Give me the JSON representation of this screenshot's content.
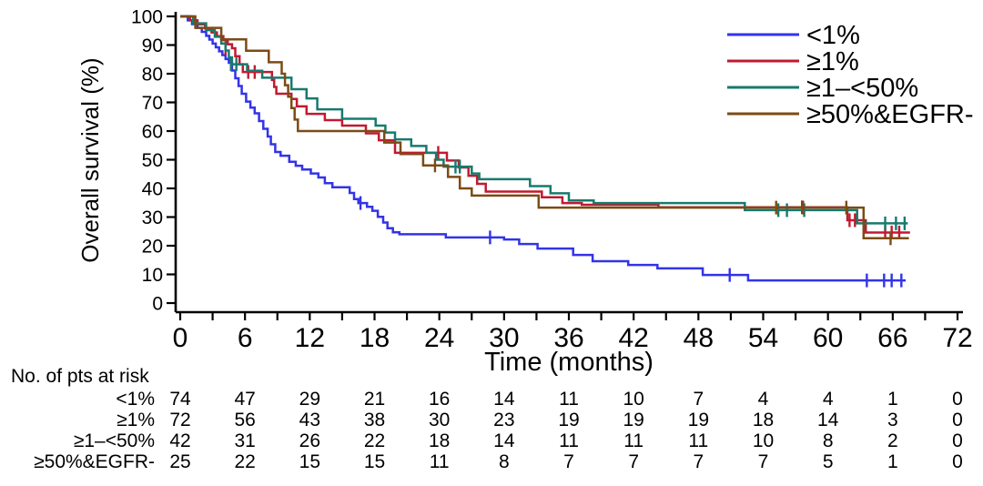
{
  "chart_data": {
    "type": "line",
    "chart_kind": "kaplan_meier_step",
    "title": "",
    "xlabel": "Time (months)",
    "ylabel": "Overall survival (%)",
    "xlim": [
      0,
      72
    ],
    "ylim": [
      0,
      100
    ],
    "x_major_ticks": [
      0,
      6,
      12,
      18,
      24,
      30,
      36,
      42,
      48,
      54,
      60,
      66,
      72
    ],
    "x_minor_tick_step": 3,
    "y_ticks": [
      0,
      10,
      20,
      30,
      40,
      50,
      60,
      70,
      80,
      90,
      100
    ],
    "grid": false,
    "legend_position": "top-right",
    "axis_color": "#000000",
    "background_color": "#ffffff",
    "series": [
      {
        "key": "lt1pct",
        "name": "<1%",
        "color": "#3333e8",
        "end_month": 67.2,
        "points": [
          [
            0,
            100
          ],
          [
            0.7,
            98.6
          ],
          [
            1.1,
            97.3
          ],
          [
            1.6,
            96
          ],
          [
            2,
            94.6
          ],
          [
            2.4,
            93.2
          ],
          [
            2.7,
            91.9
          ],
          [
            3,
            90.5
          ],
          [
            3.3,
            89.2
          ],
          [
            3.6,
            87.8
          ],
          [
            3.9,
            86.5
          ],
          [
            4.2,
            85.1
          ],
          [
            4.5,
            83.8
          ],
          [
            4.8,
            81.1
          ],
          [
            5.1,
            78.4
          ],
          [
            5.4,
            75.7
          ],
          [
            5.7,
            73
          ],
          [
            6.1,
            70.3
          ],
          [
            6.5,
            68.2
          ],
          [
            6.9,
            66.2
          ],
          [
            7.3,
            63.5
          ],
          [
            7.7,
            60.8
          ],
          [
            8.1,
            58.1
          ],
          [
            8.4,
            55.4
          ],
          [
            8.8,
            52.7
          ],
          [
            9.3,
            51.4
          ],
          [
            10.1,
            49.3
          ],
          [
            10.7,
            47.9
          ],
          [
            11.3,
            46.6
          ],
          [
            12.1,
            45.2
          ],
          [
            12.8,
            43.8
          ],
          [
            13.4,
            41.8
          ],
          [
            14.1,
            40.4
          ],
          [
            15.7,
            38.4
          ],
          [
            16.1,
            36.3
          ],
          [
            16.5,
            34.9
          ],
          [
            17.3,
            33.6
          ],
          [
            17.8,
            32.2
          ],
          [
            18.3,
            30.1
          ],
          [
            18.8,
            28.1
          ],
          [
            19.2,
            26.1
          ],
          [
            19.7,
            24.7
          ],
          [
            20.3,
            24
          ],
          [
            24.6,
            22.9
          ],
          [
            30,
            22.2
          ],
          [
            31.4,
            20.6
          ],
          [
            33.1,
            19
          ],
          [
            36.4,
            16.8
          ],
          [
            38.2,
            14.6
          ],
          [
            41.5,
            13.3
          ],
          [
            44.2,
            12.1
          ],
          [
            48.4,
            9.8
          ],
          [
            52.6,
            7.9
          ]
        ],
        "censor_marks": [
          [
            16.7,
            34.9
          ],
          [
            28.7,
            22.9
          ],
          [
            50.9,
            9.8
          ],
          [
            63.6,
            7.9
          ],
          [
            65.2,
            7.9
          ],
          [
            65.9,
            7.9
          ],
          [
            66.8,
            7.9
          ]
        ]
      },
      {
        "key": "ge1pct",
        "name": "≥1%",
        "color": "#c01a30",
        "end_month": 67.6,
        "points": [
          [
            0,
            100
          ],
          [
            0.9,
            98.6
          ],
          [
            1.6,
            97.2
          ],
          [
            2.3,
            95.8
          ],
          [
            2.9,
            94.4
          ],
          [
            3.4,
            93.1
          ],
          [
            4,
            91.7
          ],
          [
            4.4,
            90.3
          ],
          [
            4.8,
            88.9
          ],
          [
            5.1,
            86.1
          ],
          [
            5.5,
            83.3
          ],
          [
            5.8,
            80.6
          ],
          [
            8.5,
            77.8
          ],
          [
            8.7,
            75.4
          ],
          [
            8.9,
            73
          ],
          [
            10.3,
            71.2
          ],
          [
            10.8,
            68.6
          ],
          [
            11.7,
            66
          ],
          [
            13.4,
            63.8
          ],
          [
            15,
            61.9
          ],
          [
            17.2,
            59.2
          ],
          [
            18.4,
            56.8
          ],
          [
            19.9,
            52.4
          ],
          [
            24.7,
            49.7
          ],
          [
            25.8,
            47.3
          ],
          [
            26.7,
            44.4
          ],
          [
            27.5,
            41.6
          ],
          [
            28.3,
            38.9
          ],
          [
            33.5,
            36.9
          ],
          [
            35.4,
            34.9
          ],
          [
            37.2,
            34.3
          ],
          [
            44.3,
            33.4
          ],
          [
            61.8,
            28.9
          ],
          [
            63.5,
            24.6
          ]
        ],
        "censor_marks": [
          [
            4.2,
            88.9
          ],
          [
            6.3,
            80.6
          ],
          [
            6.9,
            80.6
          ],
          [
            23.9,
            52.4
          ],
          [
            57.6,
            33.4
          ],
          [
            62,
            28.9
          ],
          [
            62.5,
            28.9
          ],
          [
            65.3,
            24.6
          ],
          [
            65.9,
            24.6
          ],
          [
            66.6,
            24.6
          ]
        ]
      },
      {
        "key": "ge1-lt50pct",
        "name": "≥1–<50%",
        "color": "#177a6e",
        "end_month": 67.4,
        "points": [
          [
            0,
            100
          ],
          [
            1.2,
            97.6
          ],
          [
            2.4,
            95.2
          ],
          [
            3.2,
            92.9
          ],
          [
            3.8,
            90.5
          ],
          [
            4.2,
            88.1
          ],
          [
            4.5,
            85.7
          ],
          [
            4.8,
            83.3
          ],
          [
            6.2,
            81
          ],
          [
            7.6,
            78.6
          ],
          [
            10.3,
            74.6
          ],
          [
            11.7,
            71.4
          ],
          [
            12.7,
            67.6
          ],
          [
            15,
            64.3
          ],
          [
            18.1,
            61.9
          ],
          [
            19,
            59.5
          ],
          [
            19.9,
            57.1
          ],
          [
            21.4,
            54.8
          ],
          [
            22.8,
            52.4
          ],
          [
            23.7,
            50
          ],
          [
            24.4,
            47.6
          ],
          [
            27,
            45.2
          ],
          [
            27.7,
            43.2
          ],
          [
            32.4,
            40.8
          ],
          [
            34.3,
            38.3
          ],
          [
            36,
            35.8
          ],
          [
            38.3,
            34.9
          ],
          [
            52.3,
            32.4
          ],
          [
            62.7,
            27.8
          ]
        ],
        "censor_marks": [
          [
            4.7,
            83.3
          ],
          [
            5.2,
            83.3
          ],
          [
            25.5,
            47.6
          ],
          [
            25.9,
            47.6
          ],
          [
            55.4,
            32.4
          ],
          [
            56.2,
            32.4
          ],
          [
            57.8,
            32.4
          ],
          [
            65.3,
            27.8
          ],
          [
            66.3,
            27.8
          ],
          [
            67.1,
            27.8
          ]
        ]
      },
      {
        "key": "ge50pct-egfr-neg",
        "name": "≥50%&EGFR-",
        "color": "#7c4b15",
        "end_month": 67.5,
        "points": [
          [
            0,
            100
          ],
          [
            1.4,
            96
          ],
          [
            3.8,
            92
          ],
          [
            6.1,
            88
          ],
          [
            8.2,
            84
          ],
          [
            9.4,
            80
          ],
          [
            9.7,
            76
          ],
          [
            10,
            72
          ],
          [
            10.3,
            68
          ],
          [
            10.6,
            64
          ],
          [
            10.9,
            60
          ],
          [
            18.9,
            56
          ],
          [
            20.4,
            52
          ],
          [
            22.5,
            48
          ],
          [
            24.8,
            44
          ],
          [
            25.9,
            40
          ],
          [
            27,
            37.5
          ],
          [
            33.2,
            33.3
          ],
          [
            63.3,
            22.6
          ]
        ],
        "censor_marks": [
          [
            23.6,
            48
          ],
          [
            55.2,
            33.3
          ],
          [
            57.7,
            33.3
          ],
          [
            61.7,
            33.3
          ],
          [
            65.8,
            22.6
          ]
        ]
      }
    ]
  },
  "risk_table": {
    "title": "No. of pts at risk",
    "time_points": [
      0,
      6,
      12,
      18,
      24,
      30,
      36,
      42,
      48,
      54,
      60,
      66,
      72
    ],
    "rows": [
      {
        "label": "<1%",
        "counts": [
          74,
          47,
          29,
          21,
          16,
          14,
          11,
          10,
          7,
          4,
          4,
          1,
          0
        ]
      },
      {
        "label": "≥1%",
        "counts": [
          72,
          56,
          43,
          38,
          30,
          23,
          19,
          19,
          19,
          18,
          14,
          3,
          0
        ]
      },
      {
        "label": "≥1–<50%",
        "counts": [
          42,
          31,
          26,
          22,
          18,
          14,
          11,
          11,
          11,
          10,
          8,
          2,
          0
        ]
      },
      {
        "label": "≥50%&EGFR-",
        "counts": [
          25,
          22,
          15,
          15,
          11,
          8,
          7,
          7,
          7,
          7,
          5,
          1,
          0
        ]
      }
    ]
  }
}
